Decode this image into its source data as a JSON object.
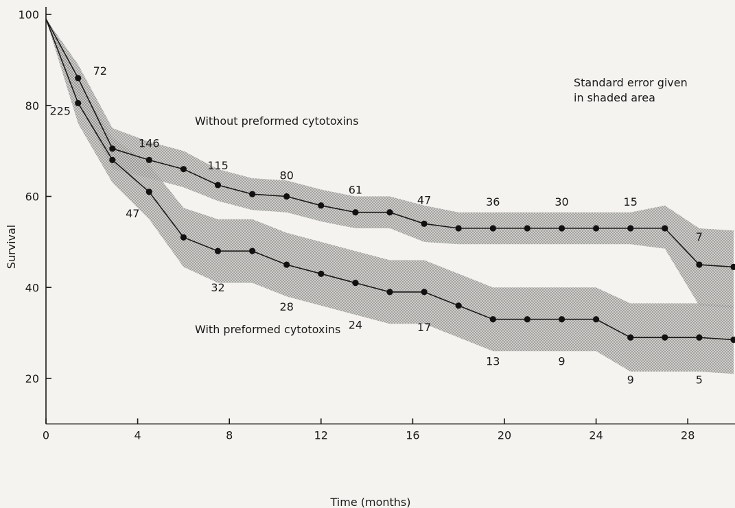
{
  "chart_data": {
    "type": "line",
    "title": "",
    "xlabel": "Time  (months)",
    "ylabel": "Survival",
    "xlim": [
      0,
      30
    ],
    "ylim": [
      10,
      100
    ],
    "x_ticks": [
      0,
      4,
      8,
      12,
      16,
      20,
      24,
      28
    ],
    "y_ticks": [
      20,
      40,
      60,
      80,
      100
    ],
    "grid": false,
    "legend": "none",
    "annotation": [
      "Standard error given",
      "in shaded area"
    ],
    "series": [
      {
        "name": "Without preformed cytotoxins",
        "x": [
          0,
          1.4,
          2.9,
          4.5,
          6,
          7.5,
          9,
          10.5,
          12,
          13.5,
          15,
          16.5,
          18,
          19.5,
          21,
          22.5,
          24,
          25.5,
          27,
          28.5,
          30
        ],
        "y": [
          99,
          86,
          70.5,
          68,
          66,
          62.5,
          60.5,
          60,
          58,
          56.5,
          56.5,
          54,
          53,
          53,
          53,
          53,
          53,
          53,
          53,
          45,
          44.5
        ],
        "se_band": [
          [
            99,
            99
          ],
          [
            81,
            89
          ],
          [
            66,
            75
          ],
          [
            64,
            72
          ],
          [
            62,
            70
          ],
          [
            59,
            66
          ],
          [
            57,
            64
          ],
          [
            56.5,
            63.5
          ],
          [
            54.5,
            61.5
          ],
          [
            53,
            60
          ],
          [
            53,
            60
          ],
          [
            50,
            58
          ],
          [
            49.5,
            56.5
          ],
          [
            49.5,
            56.5
          ],
          [
            49.5,
            56.5
          ],
          [
            49.5,
            56.5
          ],
          [
            49.5,
            56.5
          ],
          [
            49.5,
            56.5
          ],
          [
            48.5,
            58
          ],
          [
            36,
            53
          ],
          [
            35.5,
            52.5
          ]
        ],
        "count_labels": [
          {
            "x": 1.4,
            "y": 86,
            "text": "72"
          },
          {
            "x": 4.5,
            "y": 68,
            "text": "146"
          },
          {
            "x": 7.5,
            "y": 62.5,
            "text": "115"
          },
          {
            "x": 10.5,
            "y": 60,
            "text": "80"
          },
          {
            "x": 13.5,
            "y": 56.5,
            "text": "61"
          },
          {
            "x": 16.5,
            "y": 54,
            "text": "47"
          },
          {
            "x": 19.5,
            "y": 53,
            "text": "36"
          },
          {
            "x": 22.5,
            "y": 53,
            "text": "30"
          },
          {
            "x": 25.5,
            "y": 53,
            "text": "15"
          },
          {
            "x": 28.5,
            "y": 45,
            "text": "7"
          }
        ]
      },
      {
        "name": "With preformed cytotoxins",
        "x": [
          0,
          1.4,
          2.9,
          4.5,
          6,
          7.5,
          9,
          10.5,
          12,
          13.5,
          15,
          16.5,
          18,
          19.5,
          21,
          22.5,
          24,
          25.5,
          27,
          28.5,
          30
        ],
        "y": [
          99,
          80.5,
          68,
          61,
          51,
          48,
          48,
          45,
          43,
          41,
          39,
          39,
          36,
          33,
          33,
          33,
          33,
          29,
          29,
          29,
          28.5
        ],
        "se_band": [
          [
            99,
            99
          ],
          [
            76,
            85
          ],
          [
            63,
            73
          ],
          [
            55,
            67
          ],
          [
            44.5,
            57.5
          ],
          [
            41,
            55
          ],
          [
            41,
            55
          ],
          [
            38,
            52
          ],
          [
            36,
            50
          ],
          [
            34,
            48
          ],
          [
            32,
            46
          ],
          [
            32,
            46
          ],
          [
            29,
            43
          ],
          [
            26,
            40
          ],
          [
            26,
            40
          ],
          [
            26,
            40
          ],
          [
            26,
            40
          ],
          [
            21.5,
            36.5
          ],
          [
            21.5,
            36.5
          ],
          [
            21.5,
            36.5
          ],
          [
            21,
            36
          ]
        ],
        "count_labels": [
          {
            "x": 1.4,
            "y": 80.5,
            "text": "225"
          },
          {
            "x": 4.5,
            "y": 61,
            "text": "47"
          },
          {
            "x": 7.5,
            "y": 48,
            "text": "32"
          },
          {
            "x": 10.5,
            "y": 45,
            "text": "28"
          },
          {
            "x": 13.5,
            "y": 41,
            "text": "24"
          },
          {
            "x": 16.5,
            "y": 39,
            "text": "17"
          },
          {
            "x": 19.5,
            "y": 33,
            "text": "13"
          },
          {
            "x": 22.5,
            "y": 33,
            "text": "9"
          },
          {
            "x": 25.5,
            "y": 29,
            "text": "9"
          },
          {
            "x": 28.5,
            "y": 29,
            "text": "5"
          }
        ]
      }
    ]
  },
  "colors": {
    "background": "#f4f3ef",
    "ink": "#1a1a1a",
    "shade": "#9a9a9a"
  }
}
